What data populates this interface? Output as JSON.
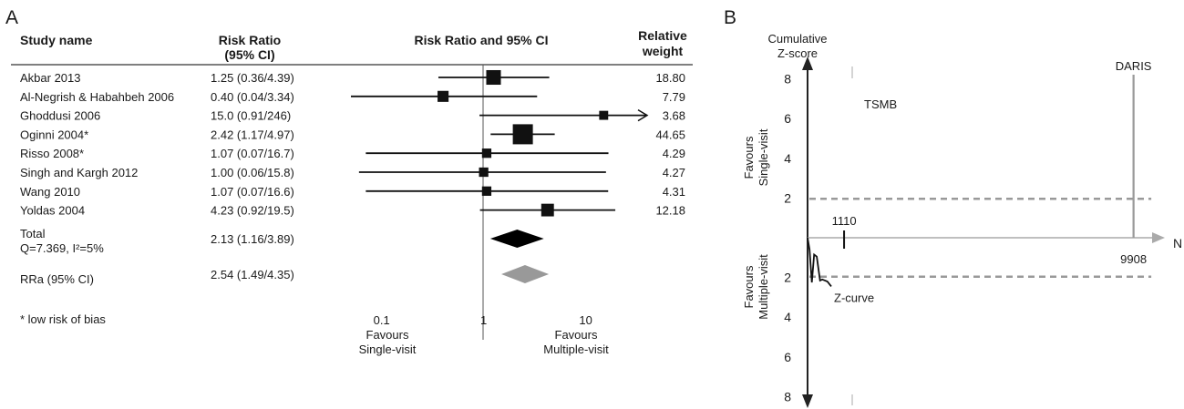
{
  "chart_data": [
    {
      "type": "forest",
      "panel_label": "A",
      "headers": {
        "study": "Study name",
        "rr_line1": "Risk Ratio",
        "rr_line2": "(95% CI)",
        "plot": "Risk Ratio and 95% CI",
        "weight_line1": "Relative",
        "weight_line2": "weight"
      },
      "scale": "log",
      "xlim": [
        0.05,
        40
      ],
      "ticks": [
        {
          "value": 0.1,
          "label": "0.1"
        },
        {
          "value": 1,
          "label": "1"
        },
        {
          "value": 10,
          "label": "10"
        }
      ],
      "favours_left": [
        "Favours",
        "Single-visit"
      ],
      "favours_right": [
        "Favours",
        "Multiple-visit"
      ],
      "studies": [
        {
          "name": "Akbar 2013",
          "rr_text": "1.25 (0.36/4.39)",
          "rr": 1.25,
          "lo": 0.36,
          "hi": 4.39,
          "weight": "18.80",
          "w": 18.8,
          "arrow": false
        },
        {
          "name": "Al-Negrish & Habahbeh 2006",
          "rr_text": "0.40 (0.04/3.34)",
          "rr": 0.4,
          "lo": 0.04,
          "hi": 3.34,
          "weight": "7.79",
          "w": 7.79,
          "arrow": false
        },
        {
          "name": "Ghoddusi 2006",
          "rr_text": "15.0 (0.91/246)",
          "rr": 15.0,
          "lo": 0.91,
          "hi": 246,
          "weight": "3.68",
          "w": 3.68,
          "arrow": true
        },
        {
          "name": "Oginni 2004*",
          "rr_text": "2.42 (1.17/4.97)",
          "rr": 2.42,
          "lo": 1.17,
          "hi": 4.97,
          "weight": "44.65",
          "w": 44.65,
          "arrow": false
        },
        {
          "name": "Risso 2008*",
          "rr_text": "1.07 (0.07/16.7)",
          "rr": 1.07,
          "lo": 0.07,
          "hi": 16.7,
          "weight": "4.29",
          "w": 4.29,
          "arrow": false
        },
        {
          "name": "Singh and Kargh 2012",
          "rr_text": "1.00 (0.06/15.8)",
          "rr": 1.0,
          "lo": 0.06,
          "hi": 15.8,
          "weight": "4.27",
          "w": 4.27,
          "arrow": false
        },
        {
          "name": "Wang 2010",
          "rr_text": "1.07 (0.07/16.6)",
          "rr": 1.07,
          "lo": 0.07,
          "hi": 16.6,
          "weight": "4.31",
          "w": 4.31,
          "arrow": false
        },
        {
          "name": "Yoldas 2004",
          "rr_text": "4.23 (0.92/19.5)",
          "rr": 4.23,
          "lo": 0.92,
          "hi": 19.5,
          "weight": "12.18",
          "w": 12.18,
          "arrow": false
        }
      ],
      "summaries": [
        {
          "name_line1": "Total",
          "name_line2": "Q=7.369, I²=5%",
          "rr_text": "2.13 (1.16/3.89)",
          "rr": 2.13,
          "lo": 1.16,
          "hi": 3.89,
          "color": "#000000"
        },
        {
          "name_line1": "RRa (95% CI)",
          "name_line2": "",
          "rr_text": "2.54 (1.49/4.35)",
          "rr": 2.54,
          "lo": 1.49,
          "hi": 4.35,
          "color": "#999999"
        }
      ],
      "footnote": "* low risk of bias"
    },
    {
      "type": "line",
      "panel_label": "B",
      "ylabel": [
        "Cumulative",
        "Z-score"
      ],
      "xlabel": "N",
      "upper_label": [
        "Favours",
        "Single-visit"
      ],
      "lower_label": [
        "Favours",
        "Multiple-visit"
      ],
      "y_ticks_up": [
        2,
        4,
        6,
        8
      ],
      "y_ticks_down": [
        2,
        4,
        6,
        8
      ],
      "ylim": [
        -8,
        8
      ],
      "xlim": [
        0,
        10500
      ],
      "boundary": {
        "z": 1.96,
        "color": "#999999",
        "style": "dashed"
      },
      "tsmb_label": "TSMB",
      "daris": {
        "label": "DARIS",
        "x": 9908,
        "x_label": "9908",
        "color": "#999999"
      },
      "x_marker": {
        "x": 1110,
        "label": "1110"
      },
      "z_curve": {
        "label": "Z-curve",
        "x": [
          0,
          60,
          130,
          200,
          280,
          380,
          450,
          600,
          720
        ],
        "y": [
          0,
          -0.6,
          -2.25,
          -0.85,
          -0.95,
          -2.15,
          -2.1,
          -2.2,
          -2.45
        ]
      }
    }
  ]
}
